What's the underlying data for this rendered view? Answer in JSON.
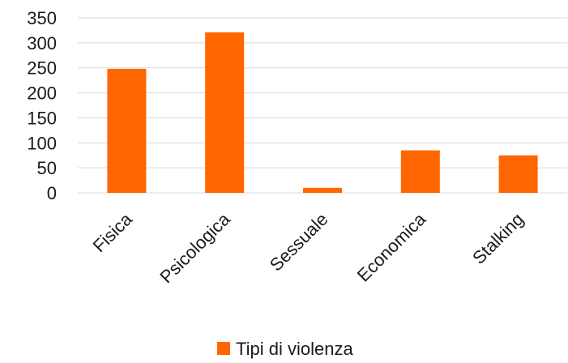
{
  "chart_data": {
    "type": "bar",
    "title": "",
    "xlabel": "",
    "ylabel": "",
    "categories": [
      "Fisica",
      "Psicologica",
      "Sessuale",
      "Economica",
      "Stalking"
    ],
    "series": [
      {
        "name": "Tipi di violenza",
        "values": [
          248,
          321,
          10,
          85,
          75
        ],
        "color": "#ff6600"
      }
    ],
    "ylim": [
      0,
      350
    ],
    "yticks": [
      0,
      50,
      100,
      150,
      200,
      250,
      300,
      350
    ],
    "grid": true,
    "legend_position": "bottom"
  }
}
